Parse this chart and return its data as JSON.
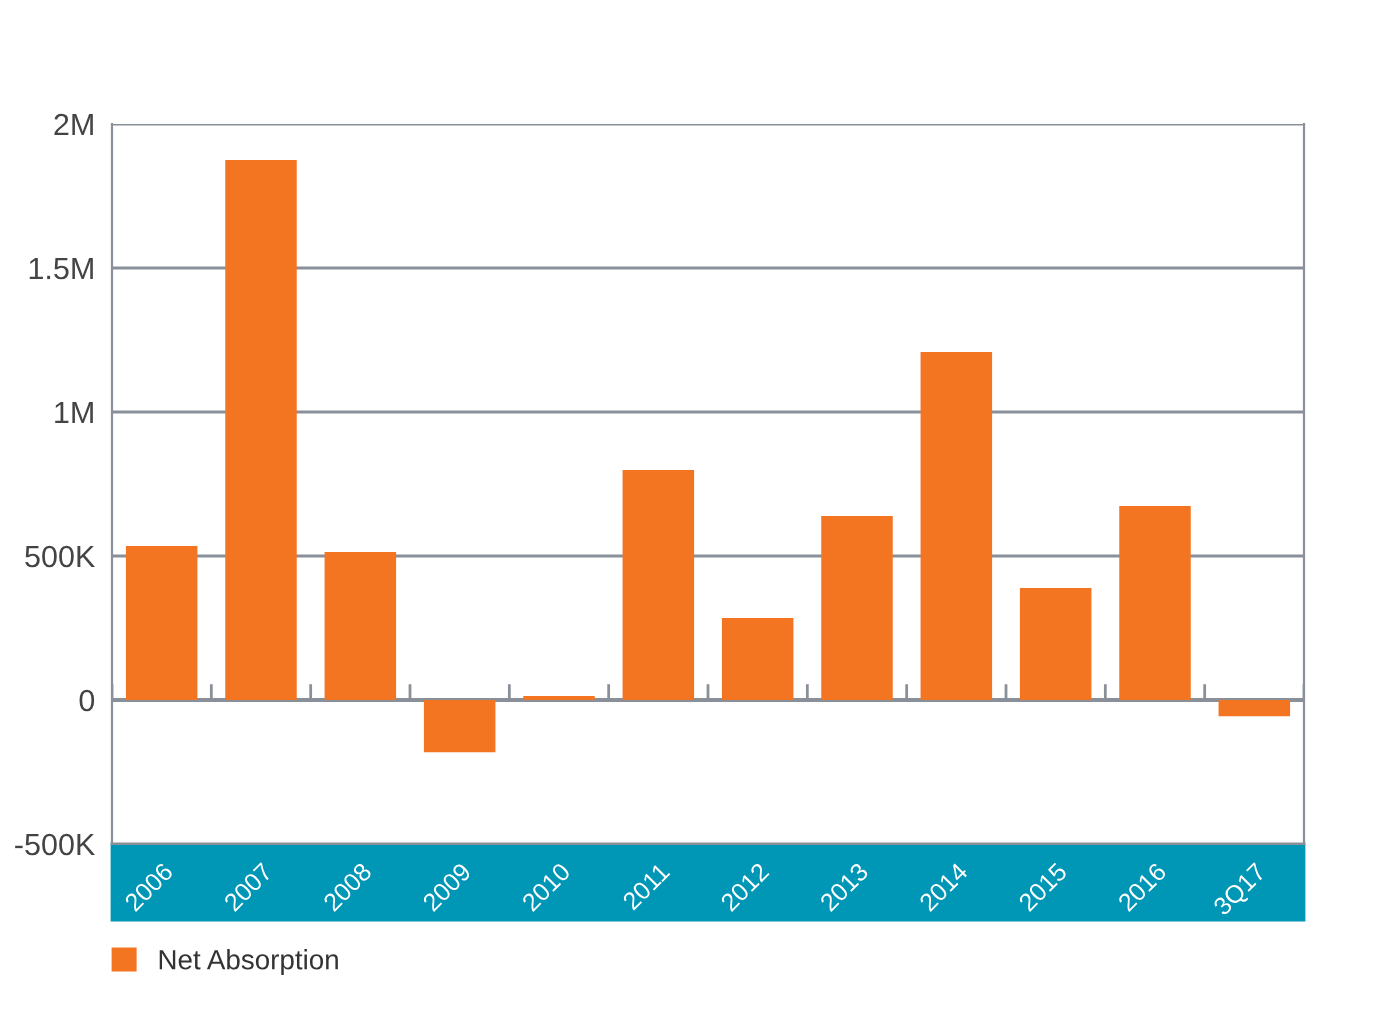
{
  "chart_data": {
    "type": "bar",
    "categories": [
      "2006",
      "2007",
      "2008",
      "2009",
      "2010",
      "2011",
      "2012",
      "2013",
      "2014",
      "2015",
      "2016",
      "3Q17"
    ],
    "series": [
      {
        "name": "Net Absorption",
        "color": "#f47521",
        "values": [
          535000,
          1875000,
          514000,
          -181000,
          14000,
          799000,
          285000,
          639000,
          1208000,
          389000,
          674000,
          -56000
        ]
      }
    ],
    "ylim": [
      -500000,
      2000000
    ],
    "yticks": [
      {
        "value": -500000,
        "label": "-500K"
      },
      {
        "value": 0,
        "label": "0"
      },
      {
        "value": 500000,
        "label": "500K"
      },
      {
        "value": 1000000,
        "label": "1M"
      },
      {
        "value": 1500000,
        "label": "1.5M"
      },
      {
        "value": 2000000,
        "label": "2M"
      }
    ],
    "grid": "y",
    "legend": "bottom left"
  }
}
